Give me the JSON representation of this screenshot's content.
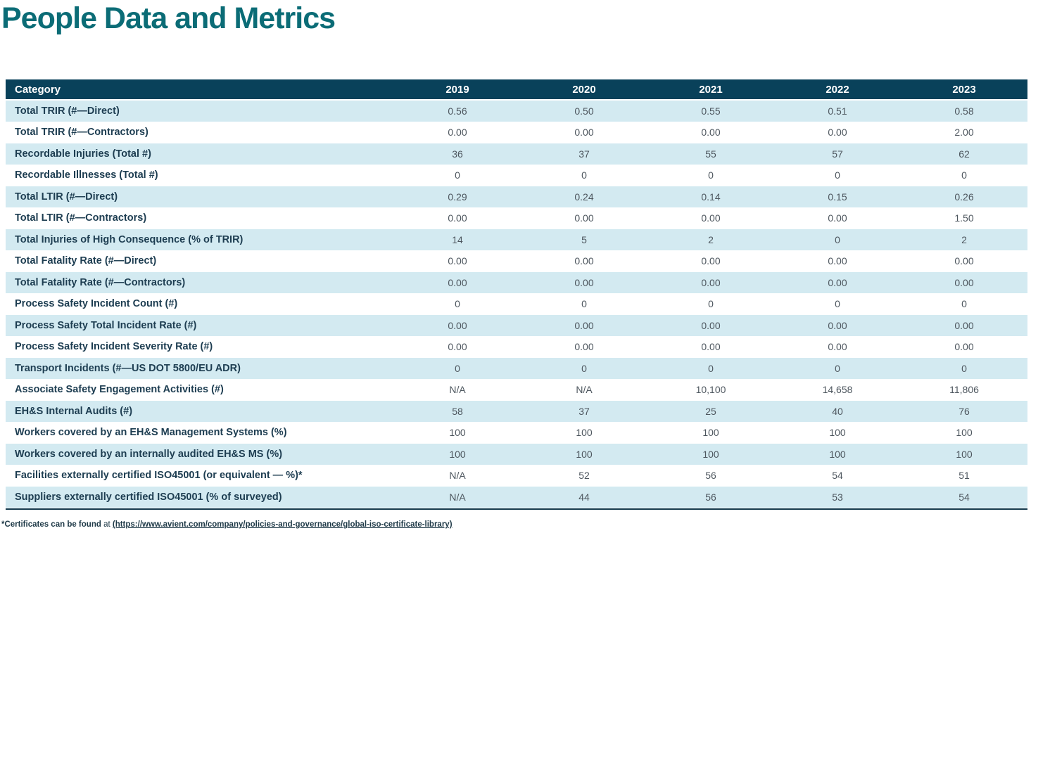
{
  "page": {
    "title": "People Data and Metrics"
  },
  "colors": {
    "title_teal": "#0b6c76",
    "header_bg": "#09415a",
    "header_text": "#ffffff",
    "row_alt_bg": "#d3eaf1",
    "row_plain_bg": "#ffffff",
    "label_text": "#1d3d51",
    "value_text": "#4d565e",
    "bottom_border": "#12384c"
  },
  "table": {
    "header": {
      "category_label": "Category",
      "years": [
        "2019",
        "2020",
        "2021",
        "2022",
        "2023"
      ]
    },
    "rows": [
      {
        "label": "Total TRIR (#—Direct)",
        "values": [
          "0.56",
          "0.50",
          "0.55",
          "0.51",
          "0.58"
        ]
      },
      {
        "label": "Total TRIR (#—Contractors)",
        "values": [
          "0.00",
          "0.00",
          "0.00",
          "0.00",
          "2.00"
        ]
      },
      {
        "label": "Recordable Injuries (Total #)",
        "values": [
          "36",
          "37",
          "55",
          "57",
          "62"
        ]
      },
      {
        "label": "Recordable Illnesses (Total #)",
        "values": [
          "0",
          "0",
          "0",
          "0",
          "0"
        ]
      },
      {
        "label": "Total LTIR (#—Direct)",
        "values": [
          "0.29",
          "0.24",
          "0.14",
          "0.15",
          "0.26"
        ]
      },
      {
        "label": "Total LTIR (#—Contractors)",
        "values": [
          "0.00",
          "0.00",
          "0.00",
          "0.00",
          "1.50"
        ]
      },
      {
        "label": "Total Injuries of High Consequence (% of TRIR)",
        "values": [
          "14",
          "5",
          "2",
          "0",
          "2"
        ]
      },
      {
        "label": "Total Fatality Rate (#—Direct)",
        "values": [
          "0.00",
          "0.00",
          "0.00",
          "0.00",
          "0.00"
        ]
      },
      {
        "label": "Total Fatality Rate (#—Contractors)",
        "values": [
          "0.00",
          "0.00",
          "0.00",
          "0.00",
          "0.00"
        ]
      },
      {
        "label": "Process Safety Incident Count (#)",
        "values": [
          "0",
          "0",
          "0",
          "0",
          "0"
        ]
      },
      {
        "label": "Process Safety Total Incident Rate (#)",
        "values": [
          "0.00",
          "0.00",
          "0.00",
          "0.00",
          "0.00"
        ]
      },
      {
        "label": "Process Safety Incident Severity Rate (#)",
        "values": [
          "0.00",
          "0.00",
          "0.00",
          "0.00",
          "0.00"
        ]
      },
      {
        "label": "Transport Incidents (#—US DOT 5800/EU ADR)",
        "values": [
          "0",
          "0",
          "0",
          "0",
          "0"
        ]
      },
      {
        "label": "Associate Safety Engagement Activities (#)",
        "values": [
          "N/A",
          "N/A",
          "10,100",
          "14,658",
          "11,806"
        ]
      },
      {
        "label": "EH&S Internal Audits (#)",
        "values": [
          "58",
          "37",
          "25",
          "40",
          "76"
        ]
      },
      {
        "label": "Workers covered by an EH&S Management Systems (%)",
        "values": [
          "100",
          "100",
          "100",
          "100",
          "100"
        ]
      },
      {
        "label": "Workers covered by an internally audited EH&S MS (%)",
        "values": [
          "100",
          "100",
          "100",
          "100",
          "100"
        ]
      },
      {
        "label": "Facilities externally certified ISO45001 (or equivalent — %)*",
        "values": [
          "N/A",
          "52",
          "56",
          "54",
          "51"
        ]
      },
      {
        "label": "Suppliers externally certified ISO45001 (% of surveyed)",
        "values": [
          "N/A",
          "44",
          "56",
          "53",
          "54"
        ]
      }
    ]
  },
  "footnote": {
    "bold_prefix": "*Certificates can be found",
    "connector": " at ",
    "link_text": "(https://www.avient.com/company/policies-and-governance/global-iso-certificate-library)"
  }
}
